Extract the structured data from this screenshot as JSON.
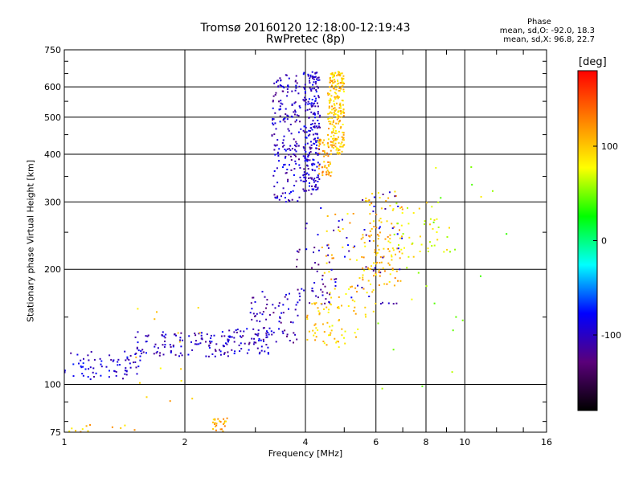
{
  "chart_data": {
    "type": "scatter",
    "title": "Tromsø 20160120 12:18:00-12:19:43",
    "subtitle": "RwPretec (8p)",
    "xlabel": "Frequency [MHz]",
    "ylabel": "Stationary phase Virtual Height [km]",
    "x_scale": "log",
    "y_scale": "log",
    "xlim": [
      1,
      16
    ],
    "ylim": [
      75,
      750
    ],
    "x_ticks": [
      1,
      2,
      4,
      6,
      8,
      10,
      16
    ],
    "x_tick_labels": [
      "1",
      "2",
      "4",
      "6",
      "8",
      "10",
      "16"
    ],
    "y_ticks": [
      75,
      100,
      200,
      300,
      400,
      500,
      600,
      750
    ],
    "y_tick_labels": [
      "75",
      "100",
      "200",
      "300",
      "400",
      "500",
      "600",
      "750"
    ],
    "grid": true,
    "phase_info": {
      "header": "Phase",
      "o_stats": "mean, sd,O: -92.0, 18.3",
      "x_stats": "mean, sd,X:  96.8, 22.7"
    },
    "colorbar": {
      "unit": "[deg]",
      "range": [
        -180,
        180
      ],
      "tick_values": [
        100,
        0,
        -100
      ],
      "tick_labels": [
        "100",
        "0",
        "-100"
      ],
      "colors": [
        "#000000",
        "#5a007a",
        "#0000ff",
        "#00ffff",
        "#00ff00",
        "#ffff00",
        "#ff8000",
        "#ff0000"
      ]
    },
    "clusters": [
      {
        "f": [
          1.0,
          1.55
        ],
        "h": [
          103,
          122
        ],
        "phase": -95,
        "n": 70
      },
      {
        "f": [
          1.5,
          2.6
        ],
        "h": [
          118,
          138
        ],
        "phase": -100,
        "n": 110
      },
      {
        "f": [
          2.5,
          3.3
        ],
        "h": [
          120,
          140
        ],
        "phase": -100,
        "n": 60
      },
      {
        "f": [
          2.9,
          3.9
        ],
        "h": [
          128,
          175
        ],
        "phase": -105,
        "n": 70
      },
      {
        "f": [
          3.3,
          3.9
        ],
        "h": [
          300,
          650
        ],
        "phase": -100,
        "n": 180
      },
      {
        "f": [
          3.95,
          4.35
        ],
        "h": [
          320,
          660
        ],
        "phase": -95,
        "n": 230
      },
      {
        "f": [
          4.3,
          4.65
        ],
        "h": [
          350,
          440
        ],
        "phase": 110,
        "n": 60
      },
      {
        "f": [
          4.55,
          5.0
        ],
        "h": [
          400,
          660
        ],
        "phase": 100,
        "n": 220
      },
      {
        "f": [
          3.8,
          4.6
        ],
        "h": [
          160,
          230
        ],
        "phase": -110,
        "n": 35
      },
      {
        "f": [
          4.0,
          5.5
        ],
        "h": [
          125,
          165
        ],
        "phase": 95,
        "n": 60
      },
      {
        "f": [
          4.4,
          6.2
        ],
        "h": [
          150,
          280
        ],
        "phase": 100,
        "n": 70
      },
      {
        "f": [
          5.5,
          7.0
        ],
        "h": [
          180,
          320
        ],
        "phase": 105,
        "n": 90
      },
      {
        "f": [
          6.5,
          9.2
        ],
        "h": [
          215,
          300
        ],
        "phase": 80,
        "n": 50
      },
      {
        "f": [
          4.0,
          7.0
        ],
        "h": [
          160,
          330
        ],
        "phase": -100,
        "n": 60
      },
      {
        "f": [
          1.0,
          1.5
        ],
        "h": [
          74,
          80
        ],
        "phase": 100,
        "n": 15
      },
      {
        "f": [
          2.35,
          2.55
        ],
        "h": [
          75,
          82
        ],
        "phase": 110,
        "n": 25
      },
      {
        "f": [
          1.5,
          2.2
        ],
        "h": [
          88,
          160
        ],
        "phase": 100,
        "n": 15
      },
      {
        "f": [
          6.0,
          14.0
        ],
        "h": [
          95,
          400
        ],
        "phase": 60,
        "n": 25
      }
    ]
  }
}
